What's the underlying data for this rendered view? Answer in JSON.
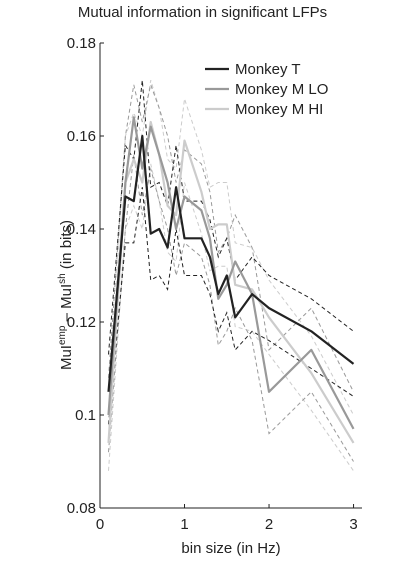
{
  "chart_data": {
    "type": "line",
    "title": "Mutual information in significant LFPs",
    "xlabel": "bin size (in Hz)",
    "ylabel": {
      "a": "MuI",
      "sup1": "emp",
      "b": " – MuI",
      "sup2": "sh",
      "c": " (in bits)"
    },
    "xlim": [
      0,
      3.1
    ],
    "ylim": [
      0.08,
      0.18
    ],
    "xticks": [
      0,
      1,
      2,
      3
    ],
    "xtick_labels": [
      "0",
      "1",
      "2",
      "3"
    ],
    "yticks": [
      0.08,
      0.1,
      0.12,
      0.14,
      0.16,
      0.18
    ],
    "ytick_labels": [
      "0.08",
      "0.1",
      "0.12",
      "0.14",
      "0.16",
      "0.18"
    ],
    "grid": false,
    "legend_position": "top-right",
    "x": [
      0.1,
      0.3,
      0.4,
      0.5,
      0.6,
      0.7,
      0.8,
      0.9,
      1.0,
      1.2,
      1.3,
      1.4,
      1.5,
      1.6,
      1.8,
      2.0,
      2.5,
      3.0
    ],
    "series": [
      {
        "name": "Monkey T",
        "color": "#222222",
        "values": [
          0.105,
          0.147,
          0.146,
          0.16,
          0.139,
          0.14,
          0.136,
          0.149,
          0.138,
          0.138,
          0.134,
          0.126,
          0.13,
          0.121,
          0.126,
          0.123,
          0.118,
          0.111
        ],
        "upper": [
          0.113,
          0.158,
          0.155,
          0.172,
          0.149,
          0.15,
          0.145,
          0.158,
          0.146,
          0.146,
          0.142,
          0.134,
          0.138,
          0.129,
          0.134,
          0.13,
          0.125,
          0.118
        ],
        "lower": [
          0.098,
          0.137,
          0.137,
          0.149,
          0.129,
          0.13,
          0.127,
          0.14,
          0.13,
          0.13,
          0.126,
          0.118,
          0.122,
          0.114,
          0.118,
          0.116,
          0.11,
          0.104
        ]
      },
      {
        "name": "Monkey M LO",
        "color": "#999999",
        "values": [
          0.1,
          0.15,
          0.164,
          0.153,
          0.162,
          0.156,
          0.15,
          0.14,
          0.147,
          0.144,
          0.138,
          0.125,
          0.128,
          0.133,
          0.126,
          0.105,
          0.114,
          0.097
        ],
        "upper": [
          0.108,
          0.16,
          0.171,
          0.163,
          0.171,
          0.166,
          0.16,
          0.15,
          0.157,
          0.154,
          0.148,
          0.135,
          0.138,
          0.143,
          0.136,
          0.114,
          0.123,
          0.105
        ],
        "lower": [
          0.092,
          0.14,
          0.156,
          0.143,
          0.153,
          0.146,
          0.14,
          0.13,
          0.137,
          0.134,
          0.128,
          0.115,
          0.118,
          0.123,
          0.116,
          0.096,
          0.105,
          0.09
        ]
      },
      {
        "name": "Monkey M HI",
        "color": "#cccccc",
        "values": [
          0.094,
          0.15,
          0.155,
          0.15,
          0.163,
          0.156,
          0.145,
          0.143,
          0.159,
          0.148,
          0.14,
          0.141,
          0.141,
          0.128,
          0.127,
          0.121,
          0.109,
          0.094
        ],
        "upper": [
          0.101,
          0.16,
          0.165,
          0.16,
          0.172,
          0.166,
          0.155,
          0.153,
          0.168,
          0.157,
          0.149,
          0.15,
          0.15,
          0.137,
          0.136,
          0.129,
          0.117,
          0.1
        ],
        "lower": [
          0.088,
          0.14,
          0.145,
          0.14,
          0.154,
          0.146,
          0.135,
          0.133,
          0.15,
          0.139,
          0.131,
          0.132,
          0.132,
          0.119,
          0.118,
          0.113,
          0.101,
          0.088
        ]
      }
    ]
  }
}
